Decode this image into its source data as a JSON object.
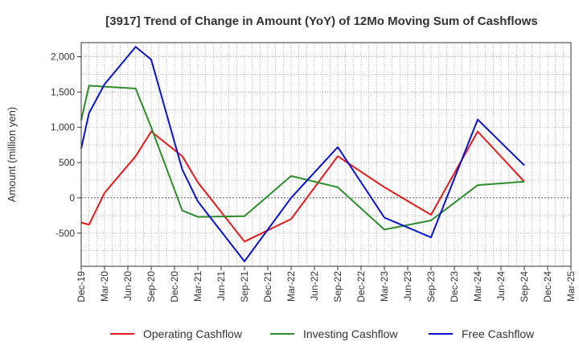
{
  "chart_data": {
    "type": "line",
    "title": "[3917]  Trend of Change in Amount (YoY) of 12Mo Moving Sum of Cashflows",
    "xlabel": "",
    "ylabel": "Amount (million yen)",
    "ylim": [
      -970,
      2200
    ],
    "yticks": [
      -500,
      0,
      500,
      1000,
      1500,
      2000
    ],
    "ytick_labels": [
      "-500",
      "0",
      "500",
      "1,000",
      "1,500",
      "2,000"
    ],
    "x_start_month": 12,
    "x_start_year": 2019,
    "x_total_months": 63,
    "categories": [
      "Dec-19",
      "Mar-20",
      "Jun-20",
      "Sep-20",
      "Dec-20",
      "Mar-21",
      "Jun-21",
      "Sep-21",
      "Dec-21",
      "Mar-22",
      "Jun-22",
      "Sep-22",
      "Dec-22",
      "Mar-23",
      "Jun-23",
      "Sep-23",
      "Dec-23",
      "Mar-24",
      "Jun-24",
      "Sep-24",
      "Dec-24",
      "Mar-25"
    ],
    "grid": true,
    "legend_position": "bottom",
    "series": [
      {
        "name": "Operating Cashflow",
        "color": "#e41a1c",
        "points": [
          [
            0,
            -350
          ],
          [
            1,
            -380
          ],
          [
            3,
            70
          ],
          [
            7,
            590
          ],
          [
            9,
            940
          ],
          [
            13,
            590
          ],
          [
            15,
            220
          ],
          [
            21,
            -620
          ],
          [
            27,
            -300
          ],
          [
            33,
            590
          ],
          [
            39,
            150
          ],
          [
            45,
            -240
          ],
          [
            51,
            940
          ],
          [
            57,
            230
          ]
        ]
      },
      {
        "name": "Investing Cashflow",
        "color": "#2e8b2e",
        "points": [
          [
            0,
            1100
          ],
          [
            1,
            1590
          ],
          [
            7,
            1550
          ],
          [
            9,
            1000
          ],
          [
            13,
            -180
          ],
          [
            15,
            -270
          ],
          [
            21,
            -260
          ],
          [
            27,
            310
          ],
          [
            33,
            150
          ],
          [
            39,
            -450
          ],
          [
            45,
            -320
          ],
          [
            51,
            180
          ],
          [
            57,
            230
          ]
        ]
      },
      {
        "name": "Free Cashflow",
        "color": "#0a12cc",
        "points": [
          [
            0,
            700
          ],
          [
            1,
            1200
          ],
          [
            3,
            1610
          ],
          [
            7,
            2140
          ],
          [
            9,
            1960
          ],
          [
            13,
            400
          ],
          [
            15,
            -50
          ],
          [
            21,
            -900
          ],
          [
            27,
            0
          ],
          [
            33,
            720
          ],
          [
            39,
            -280
          ],
          [
            45,
            -560
          ],
          [
            51,
            1110
          ],
          [
            57,
            460
          ]
        ]
      }
    ]
  }
}
